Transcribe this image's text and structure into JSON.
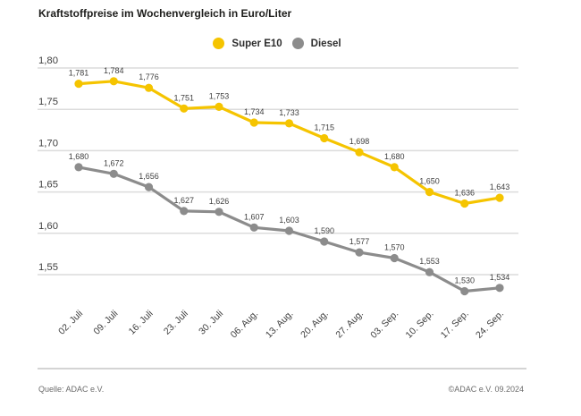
{
  "page_title": "Kraftstoffpreise im Wochenvergleich in Euro/Liter",
  "footer": {
    "source": "Quelle: ADAC e.V.",
    "copyright": "©ADAC e.V. 09.2024"
  },
  "colors": {
    "super_e10": "#F5C400",
    "diesel": "#8C8C8C",
    "grid": "#DCDCDC",
    "divider": "#D4D4D4",
    "axis_text": "#3F3F3F",
    "value_text": "#3F3F3F",
    "title_text": "#1D1D1B",
    "footer_text": "#6B6B6B",
    "background": "#FFFFFF"
  },
  "chart_data": {
    "type": "line",
    "title": "Kraftstoffpreise im Wochenvergleich in Euro/Liter",
    "unit": "Euro/Liter",
    "grid": true,
    "legend_position": "top-center",
    "categories": [
      "02. Juli",
      "09. Juli",
      "16. Juli",
      "23. Juli",
      "30. Juli",
      "06. Aug.",
      "13. Aug.",
      "20. Aug.",
      "27. Aug.",
      "03. Sep.",
      "10. Sep.",
      "17. Sep.",
      "24. Sep."
    ],
    "y_axis": {
      "tick_labels": [
        "1,80",
        "1,75",
        "1,70",
        "1,65",
        "1,60",
        "1,55"
      ],
      "tick_values": [
        1.8,
        1.75,
        1.7,
        1.65,
        1.6,
        1.55
      ]
    },
    "ylim": [
      1.52,
      1.82
    ],
    "series": [
      {
        "name": "Super E10",
        "color": "#F5C400",
        "values": [
          1.781,
          1.784,
          1.776,
          1.751,
          1.753,
          1.734,
          1.733,
          1.715,
          1.698,
          1.68,
          1.65,
          1.636,
          1.643
        ],
        "labels": [
          "1,781",
          "1,784",
          "1,776",
          "1,751",
          "1,753",
          "1,734",
          "1,733",
          "1,715",
          "1,698",
          "1,680",
          "1,650",
          "1,636",
          "1,643"
        ]
      },
      {
        "name": "Diesel",
        "color": "#8C8C8C",
        "values": [
          1.68,
          1.672,
          1.656,
          1.627,
          1.626,
          1.607,
          1.603,
          1.59,
          1.577,
          1.57,
          1.553,
          1.53,
          1.534
        ],
        "labels": [
          "1,680",
          "1,672",
          "1,656",
          "1,627",
          "1,626",
          "1,607",
          "1,603",
          "1,590",
          "1,577",
          "1,570",
          "1,553",
          "1,530",
          "1,534"
        ]
      }
    ]
  }
}
